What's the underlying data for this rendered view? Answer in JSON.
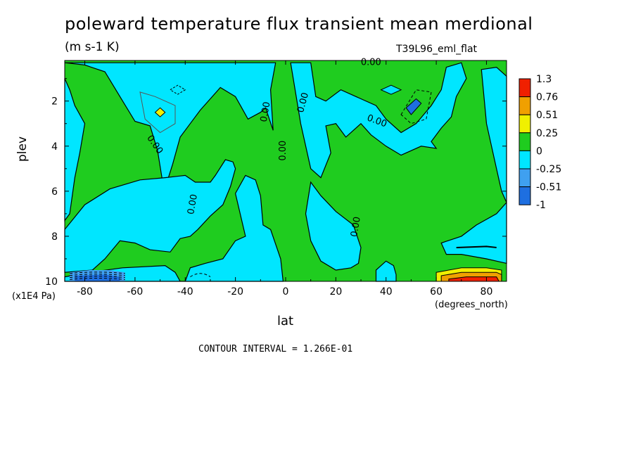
{
  "title": "poleward temperature flux transient mean merdional",
  "units": "(m s-1 K)",
  "dataset": "T39L96_eml_flat",
  "contour_interval": "CONTOUR INTERVAL = 1.266E-01",
  "colors": {
    "lt_-0.51": "#1e6fe0",
    "-0.51_-0.25": "#3fa0f0",
    "-0.25_0": "#00e6ff",
    "0_0.25": "#1fcc1f",
    "0.25_0.51": "#f0f000",
    "0.51_0.76": "#f0a000",
    "gt_0.76": "#f02000"
  },
  "chart_data": {
    "type": "contour",
    "xlabel": "lat",
    "xunit": "(degrees_north)",
    "ylabel": "plev",
    "yunit": "(x1E4 Pa)",
    "xlim": [
      -88,
      88
    ],
    "ylim": [
      10,
      0.2
    ],
    "xticks": [
      -80,
      -60,
      -40,
      -20,
      0,
      20,
      40,
      60,
      80
    ],
    "xtick_labels": [
      "-80",
      "-60",
      "-40",
      "-20",
      "0",
      "20",
      "40",
      "60",
      "80"
    ],
    "yticks": [
      2,
      4,
      6,
      8,
      10
    ],
    "ytick_labels": [
      "2",
      "4",
      "6",
      "8",
      "10"
    ],
    "colorbar_labels": [
      "1.3",
      "0.76",
      "0.51",
      "0.25",
      "0",
      "-0.25",
      "-0.51",
      "-1"
    ],
    "contour_labels": [
      "0.00",
      "0.00",
      "0.00",
      "0.00",
      "0.00",
      "0.00",
      "0.00",
      "0.00"
    ],
    "negative_regions": [
      [
        [
          -88,
          0.3
        ],
        [
          -80,
          0.4
        ],
        [
          -72,
          0.7
        ],
        [
          -66,
          1.8
        ],
        [
          -60,
          2.9
        ],
        [
          -54,
          3.1
        ],
        [
          -51,
          4.2
        ],
        [
          -49,
          5.6
        ],
        [
          -47,
          5.5
        ],
        [
          -45,
          4.8
        ],
        [
          -42,
          3.6
        ],
        [
          -38,
          3.0
        ],
        [
          -34,
          2.4
        ],
        [
          -26,
          1.4
        ],
        [
          -20,
          1.8
        ],
        [
          -18,
          2.2
        ],
        [
          -15,
          2.8
        ],
        [
          -10,
          2.5
        ],
        [
          -8,
          2.3
        ],
        [
          -5,
          3.3
        ],
        [
          -6,
          1.5
        ],
        [
          -4,
          0.3
        ],
        [
          -88,
          0.3
        ]
      ],
      [
        [
          -88,
          1.0
        ],
        [
          -86,
          1.5
        ],
        [
          -84,
          2.2
        ],
        [
          -80,
          3.0
        ],
        [
          -82,
          4.3
        ],
        [
          -84,
          5.4
        ],
        [
          -86,
          7.0
        ],
        [
          -88,
          7.3
        ],
        [
          -88,
          1.0
        ]
      ],
      [
        [
          -40,
          5.3
        ],
        [
          -36,
          5.6
        ],
        [
          -30,
          5.6
        ],
        [
          -28,
          5.3
        ],
        [
          -24,
          4.6
        ],
        [
          -21,
          4.7
        ],
        [
          -20,
          5.0
        ],
        [
          -22,
          5.8
        ],
        [
          -25,
          6.6
        ],
        [
          -30,
          7.1
        ],
        [
          -35,
          7.7
        ],
        [
          -38,
          8.0
        ],
        [
          -42,
          8.1
        ],
        [
          -46,
          8.7
        ],
        [
          -54,
          8.6
        ],
        [
          -60,
          8.3
        ],
        [
          -66,
          8.2
        ],
        [
          -72,
          9.0
        ],
        [
          -77,
          9.5
        ],
        [
          -88,
          9.6
        ],
        [
          -88,
          7.7
        ],
        [
          -80,
          6.6
        ],
        [
          -70,
          5.9
        ],
        [
          -58,
          5.5
        ],
        [
          -48,
          5.4
        ],
        [
          -40,
          5.3
        ]
      ],
      [
        [
          -20,
          6.1
        ],
        [
          -16,
          5.3
        ],
        [
          -12,
          5.5
        ],
        [
          -10,
          6.2
        ],
        [
          -9,
          7.5
        ],
        [
          -6,
          7.7
        ],
        [
          -2,
          9.0
        ],
        [
          -1,
          10.0
        ],
        [
          -88,
          10.0
        ],
        [
          -88,
          9.8
        ],
        [
          -78,
          9.6
        ],
        [
          -65,
          9.4
        ],
        [
          -48,
          9.3
        ],
        [
          -44,
          9.6
        ],
        [
          -42,
          10.0
        ],
        [
          -40,
          10.0
        ],
        [
          -38,
          9.4
        ],
        [
          -32,
          9.2
        ],
        [
          -25,
          9.0
        ],
        [
          -20,
          8.2
        ],
        [
          -16,
          8.0
        ],
        [
          -20,
          6.1
        ]
      ],
      [
        [
          2,
          0.3
        ],
        [
          10,
          0.3
        ],
        [
          12,
          1.8
        ],
        [
          16,
          2.0
        ],
        [
          22,
          1.5
        ],
        [
          28,
          1.8
        ],
        [
          36,
          2.2
        ],
        [
          40,
          2.8
        ],
        [
          46,
          3.4
        ],
        [
          52,
          3.0
        ],
        [
          58,
          2.2
        ],
        [
          62,
          1.5
        ],
        [
          64,
          0.5
        ],
        [
          70,
          0.3
        ],
        [
          72,
          1.0
        ],
        [
          68,
          1.8
        ],
        [
          66,
          2.7
        ],
        [
          62,
          3.2
        ],
        [
          58,
          3.8
        ],
        [
          60,
          4.1
        ],
        [
          54,
          4.0
        ],
        [
          46,
          4.4
        ],
        [
          40,
          4.0
        ],
        [
          34,
          3.5
        ],
        [
          30,
          3.0
        ],
        [
          24,
          3.6
        ],
        [
          20,
          3.0
        ],
        [
          16,
          3.1
        ],
        [
          18,
          4.3
        ],
        [
          14,
          5.4
        ],
        [
          10,
          5.0
        ],
        [
          6,
          3.0
        ],
        [
          2,
          0.3
        ]
      ],
      [
        [
          78,
          0.6
        ],
        [
          84,
          0.5
        ],
        [
          88,
          0.9
        ],
        [
          88,
          9.2
        ],
        [
          80,
          9.0
        ],
        [
          70,
          8.8
        ],
        [
          64,
          8.8
        ],
        [
          62,
          8.3
        ],
        [
          70,
          8.0
        ],
        [
          76,
          7.5
        ],
        [
          84,
          7.0
        ],
        [
          88,
          6.5
        ],
        [
          86,
          6.0
        ],
        [
          84,
          5.0
        ],
        [
          82,
          4.0
        ],
        [
          80,
          3.0
        ],
        [
          78,
          0.6
        ]
      ],
      [
        [
          10,
          5.6
        ],
        [
          14,
          6.2
        ],
        [
          20,
          6.9
        ],
        [
          27,
          7.5
        ],
        [
          30,
          8.5
        ],
        [
          29,
          9.2
        ],
        [
          26,
          9.4
        ],
        [
          20,
          9.5
        ],
        [
          14,
          9.1
        ],
        [
          10,
          8.2
        ],
        [
          8,
          7.0
        ],
        [
          10,
          5.6
        ]
      ],
      [
        [
          36,
          9.5
        ],
        [
          40,
          9.1
        ],
        [
          43,
          9.3
        ],
        [
          44,
          9.7
        ],
        [
          44,
          10.0
        ],
        [
          36,
          10.0
        ],
        [
          36,
          9.5
        ]
      ]
    ],
    "strong_negative_region": [
      [
        -86,
        9.6
      ],
      [
        -78,
        9.5
      ],
      [
        -70,
        9.5
      ],
      [
        -64,
        9.6
      ],
      [
        -64,
        10.0
      ],
      [
        -86,
        10.0
      ],
      [
        -86,
        9.6
      ]
    ],
    "strong_positive_region": [
      [
        60,
        9.6
      ],
      [
        70,
        9.4
      ],
      [
        80,
        9.4
      ],
      [
        86,
        9.5
      ],
      [
        86,
        10.0
      ],
      [
        60,
        10.0
      ],
      [
        60,
        9.6
      ]
    ]
  }
}
